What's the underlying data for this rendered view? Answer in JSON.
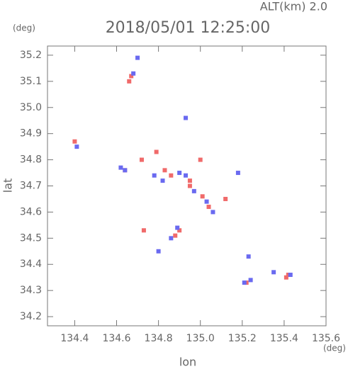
{
  "chart_data": {
    "type": "scatter",
    "title": "2018/05/01 12:25:00",
    "subtitle": "ALT(km) 2.0",
    "x_label": "lon",
    "y_label": "lat",
    "x_unit": "(deg)",
    "y_unit": "(deg)",
    "xlim": [
      134.27,
      135.6
    ],
    "ylim": [
      34.165,
      35.235
    ],
    "xticks": [
      134.4,
      134.6,
      134.8,
      {
        "value": 135,
        "label": "135.0"
      },
      135.2,
      135.4,
      135.6
    ],
    "yticks": [
      34.2,
      34.3,
      34.4,
      34.5,
      34.6,
      34.7,
      34.8,
      34.9,
      {
        "value": 35,
        "label": "35.0"
      },
      35.1,
      35.2
    ],
    "grid": false,
    "series": [
      {
        "color": "#f06a6a",
        "x": [
          134.67,
          134.66,
          134.64,
          134.72,
          134.79,
          134.83,
          134.86,
          134.95,
          135.01,
          135.04,
          135.12,
          134.88,
          134.9,
          134.73,
          135.22,
          135.41,
          135.42,
          134.4,
          134.95,
          135.0
        ],
        "values": [
          35.12,
          35.1,
          34.76,
          34.8,
          34.83,
          34.76,
          34.74,
          34.72,
          34.66,
          34.62,
          34.65,
          34.51,
          34.53,
          34.53,
          34.33,
          34.35,
          34.36,
          34.87,
          34.7,
          34.8
        ]
      },
      {
        "color": "#6a6af0",
        "x": [
          134.68,
          134.7,
          134.62,
          134.64,
          134.78,
          134.82,
          134.9,
          134.93,
          134.97,
          135.03,
          135.06,
          134.86,
          134.89,
          134.8,
          134.93,
          135.21,
          135.24,
          135.35,
          135.18,
          134.41,
          135.23,
          135.43
        ],
        "values": [
          35.13,
          35.19,
          34.77,
          34.76,
          34.74,
          34.72,
          34.75,
          34.74,
          34.68,
          34.64,
          34.6,
          34.5,
          34.54,
          34.45,
          34.96,
          34.33,
          34.34,
          34.37,
          34.75,
          34.85,
          34.43,
          34.36
        ]
      }
    ]
  }
}
